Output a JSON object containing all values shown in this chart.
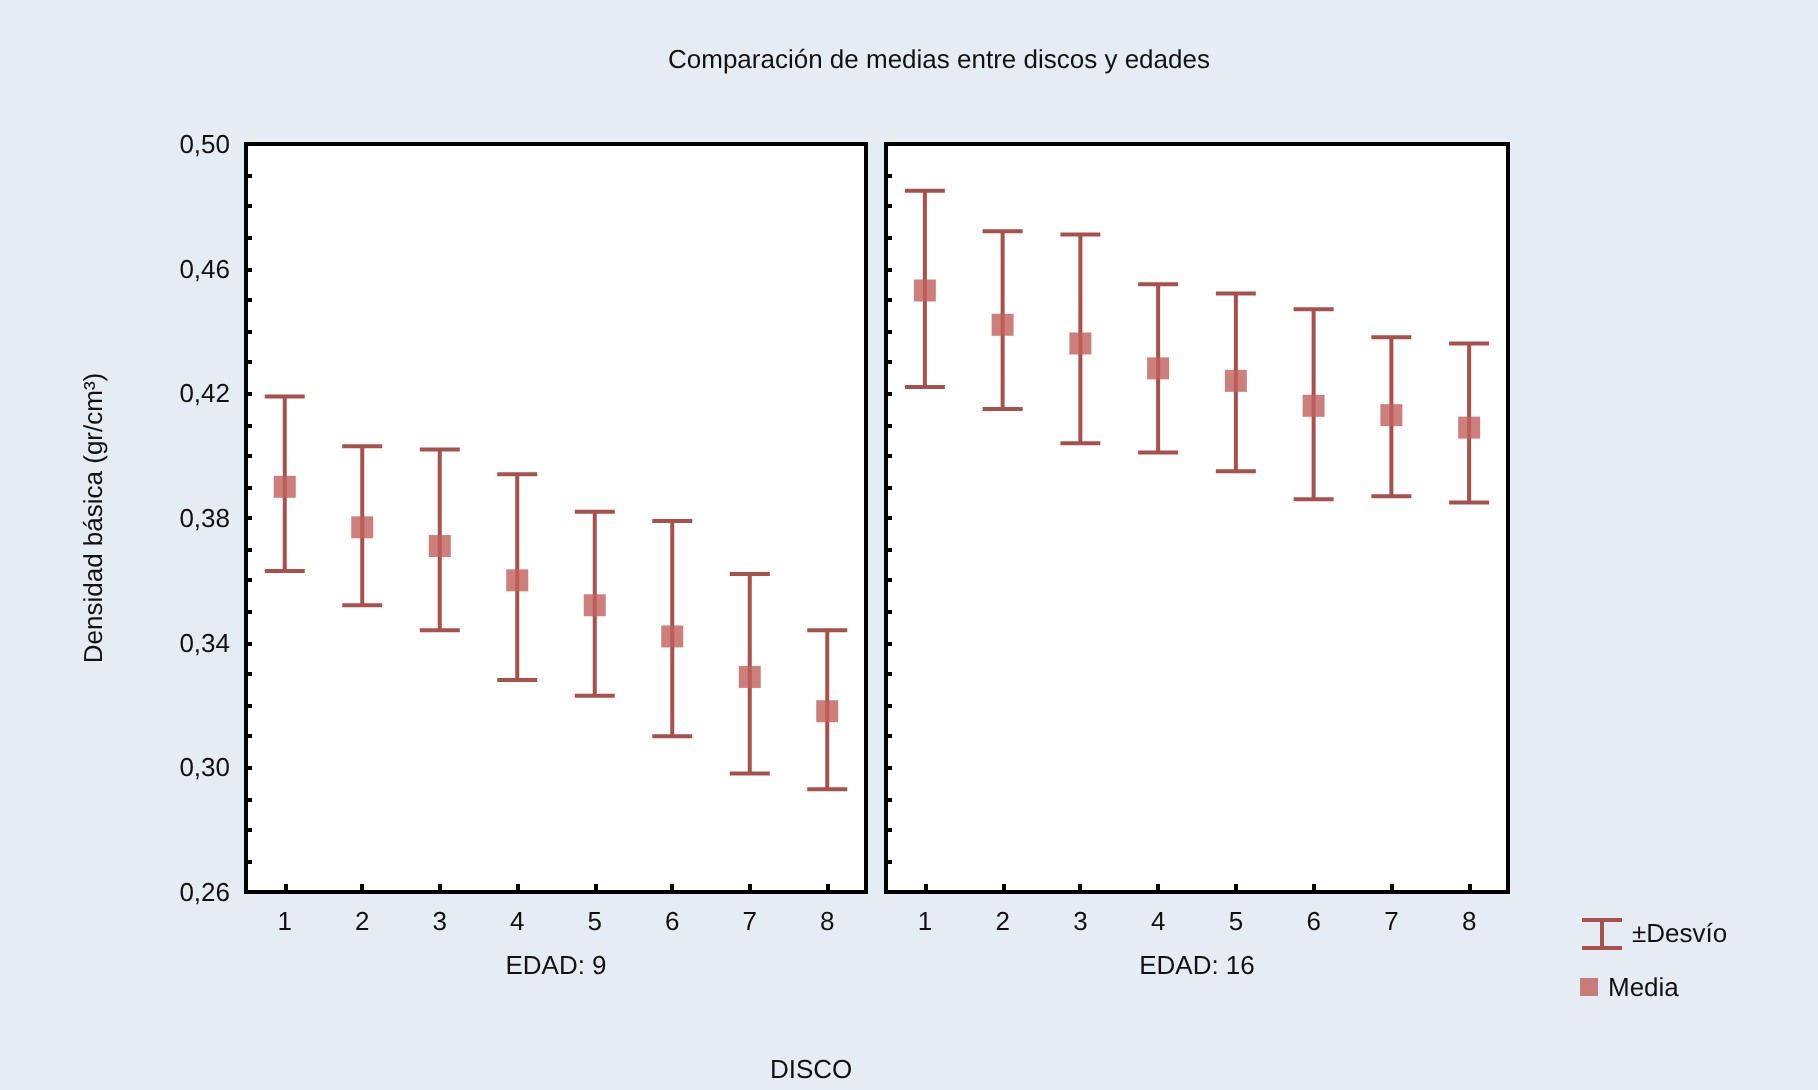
{
  "chart_data": [
    {
      "type": "scatter",
      "title": "Comparación de medias entre discos y edades",
      "xlabel": "EDAD: 9",
      "ylabel": "Densidad básica (gr/cm³)",
      "annotations": [
        "DISCO"
      ],
      "categories": [
        "1",
        "2",
        "3",
        "4",
        "5",
        "6",
        "7",
        "8"
      ],
      "series": [
        {
          "color": "#c0605a",
          "values": [
            0.39,
            0.377,
            0.371,
            0.36,
            0.352,
            0.342,
            0.329,
            0.318
          ],
          "errors": [
            [
              0.363,
              0.419
            ],
            [
              0.352,
              0.403
            ],
            [
              0.344,
              0.402
            ],
            [
              0.328,
              0.394
            ],
            [
              0.323,
              0.382
            ],
            [
              0.31,
              0.379
            ],
            [
              0.298,
              0.362
            ],
            [
              0.293,
              0.344
            ]
          ]
        }
      ],
      "ylim": [
        0.26,
        0.5
      ],
      "yticks": [
        {
          "value": 0.26,
          "label": "0,26"
        },
        {
          "value": 0.3,
          "label": "0,30"
        },
        {
          "value": 0.34,
          "label": "0,34"
        },
        {
          "value": 0.38,
          "label": "0,38"
        },
        {
          "value": 0.42,
          "label": "0,42"
        },
        {
          "value": 0.46,
          "label": "0,46"
        },
        {
          "value": 0.5,
          "label": "0,50"
        }
      ],
      "marker": "square",
      "grid": false,
      "legend": false
    },
    {
      "type": "scatter",
      "xlabel": "EDAD: 16",
      "annotations": [
        "±Desvío"
      ],
      "categories": [
        "1",
        "2",
        "3",
        "4",
        "5",
        "6",
        "7",
        "8"
      ],
      "series": [
        {
          "name": "Media",
          "color": "#c0605a",
          "values": [
            0.453,
            0.442,
            0.436,
            0.428,
            0.424,
            0.416,
            0.413,
            0.409
          ],
          "errors": [
            [
              0.422,
              0.485
            ],
            [
              0.415,
              0.472
            ],
            [
              0.404,
              0.471
            ],
            [
              0.401,
              0.455
            ],
            [
              0.395,
              0.452
            ],
            [
              0.386,
              0.447
            ],
            [
              0.387,
              0.438
            ],
            [
              0.385,
              0.436
            ]
          ]
        }
      ],
      "ylim": [
        0.26,
        0.5
      ],
      "yticks": [
        {
          "value": 0.26,
          "label": null
        },
        {
          "value": 0.3,
          "label": null
        },
        {
          "value": 0.34,
          "label": null
        },
        {
          "value": 0.38,
          "label": null
        },
        {
          "value": 0.42,
          "label": null
        },
        {
          "value": 0.46,
          "label": null
        },
        {
          "value": 0.5,
          "label": null
        }
      ],
      "tick_labels": "x",
      "marker": "square",
      "grid": false,
      "legend": "bottom right"
    }
  ]
}
